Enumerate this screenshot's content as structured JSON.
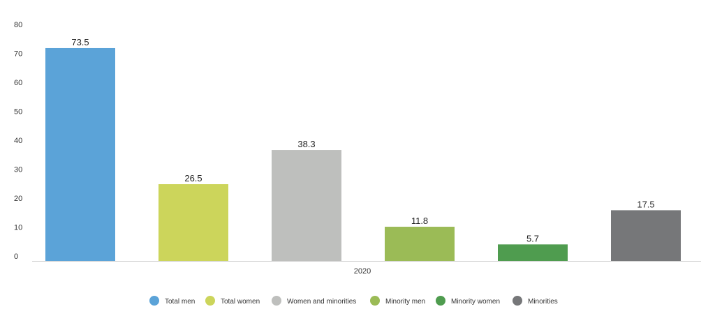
{
  "chart_data": {
    "type": "bar",
    "x_category": "2020",
    "ylim": [
      0,
      80
    ],
    "yticks": [
      0,
      10,
      20,
      30,
      40,
      50,
      60,
      70,
      80
    ],
    "grid": false,
    "legend_position": "bottom",
    "series": [
      {
        "name": "Total men",
        "value": 73.5,
        "label": "73.5",
        "color": "#5ba3d8"
      },
      {
        "name": "Total women",
        "value": 26.5,
        "label": "26.5",
        "color": "#ccd55b"
      },
      {
        "name": "Women and minorities",
        "value": 38.3,
        "label": "38.3",
        "color": "#bebfbd"
      },
      {
        "name": "Minority men",
        "value": 11.8,
        "label": "11.8",
        "color": "#9bbb56"
      },
      {
        "name": "Minority women",
        "value": 5.7,
        "label": "5.7",
        "color": "#4f9c4f"
      },
      {
        "name": "Minorities",
        "value": 17.5,
        "label": "17.5",
        "color": "#767779"
      }
    ]
  }
}
